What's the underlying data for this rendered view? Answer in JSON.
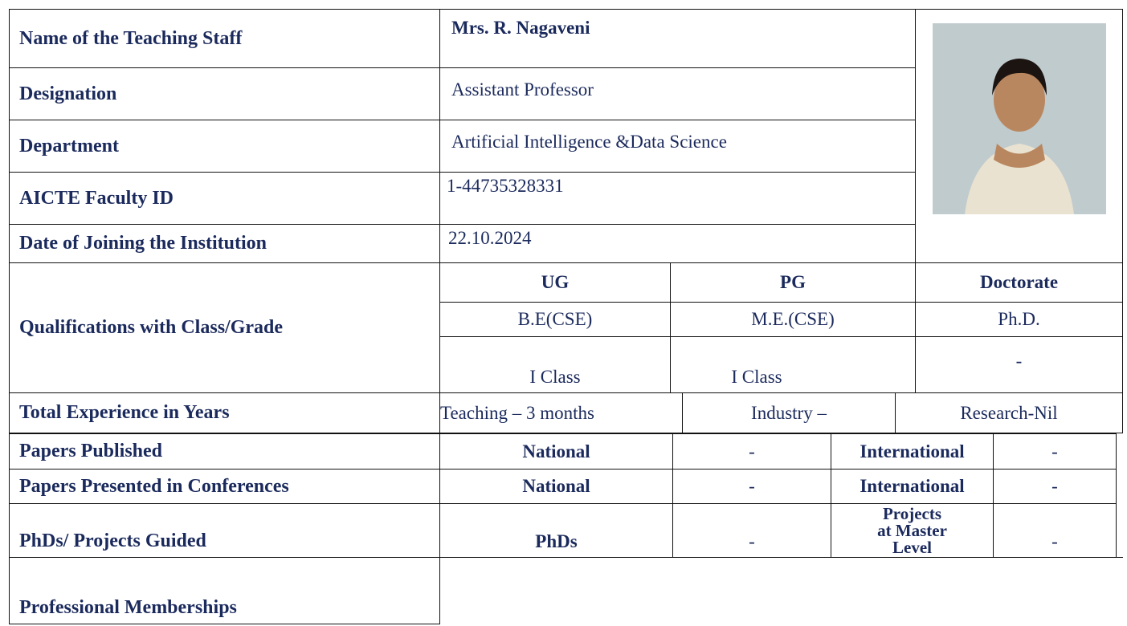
{
  "profile": [
    {
      "label": "Name of the Teaching Staff",
      "value": "Mrs. R. Nagaveni"
    },
    {
      "label": "Designation",
      "value": "Assistant Professor"
    },
    {
      "label": "Department",
      "value": "Artificial Intelligence &Data Science"
    },
    {
      "label": "AICTE Faculty ID",
      "value": "1-44735328331"
    },
    {
      "label": "Date of Joining the Institution",
      "value": "22.10.2024"
    }
  ],
  "qualifications": {
    "label": "Qualifications with Class/Grade",
    "headers": [
      "UG",
      "PG",
      "Doctorate"
    ],
    "degrees": [
      "B.E(CSE)",
      "M.E.(CSE)",
      "Ph.D."
    ],
    "classes": [
      "I Class",
      "I Class",
      "-"
    ]
  },
  "experience": {
    "label": "Total Experience in Years",
    "values": [
      "Teaching – 3 months",
      "Industry –",
      "Research-Nil"
    ]
  },
  "papers_published": {
    "label": "Papers Published",
    "cells": [
      "National",
      "-",
      "International",
      "-"
    ]
  },
  "papers_presented": {
    "label": "Papers Presented in Conferences",
    "cells": [
      "National",
      "-",
      "International",
      "-"
    ]
  },
  "guided": {
    "label": "PhDs/ Projects Guided",
    "cells": [
      "PhDs",
      "-",
      "Projects at Master Level",
      "-"
    ]
  },
  "memberships": {
    "label": "Professional Memberships"
  }
}
